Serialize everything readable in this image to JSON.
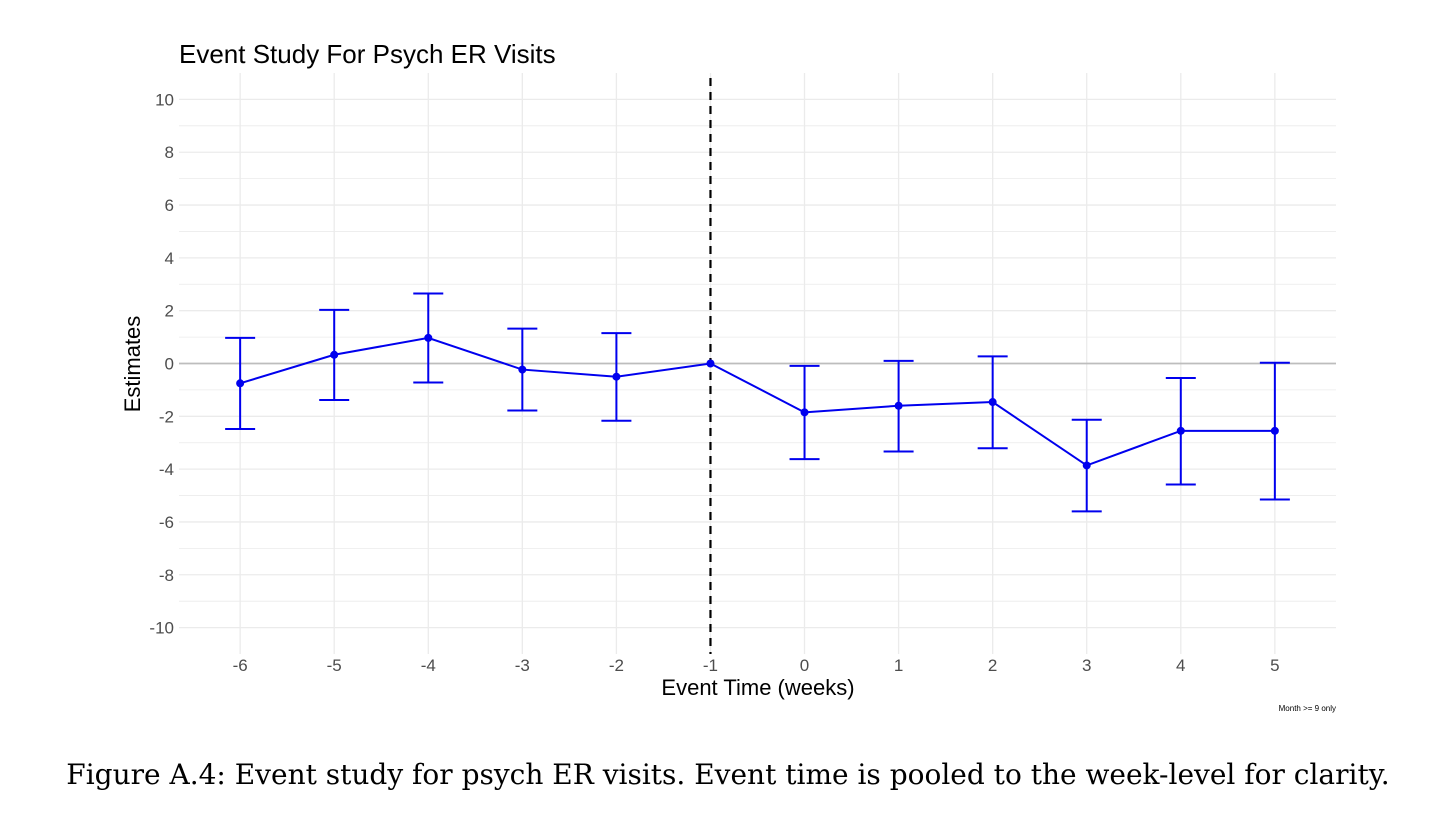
{
  "chart_data": {
    "type": "line",
    "title": "Event Study For Psych ER Visits",
    "xlabel": "Event Time (weeks)",
    "ylabel": "Estimates",
    "caption": "Month >= 9 only",
    "x": [
      -6,
      -5,
      -4,
      -3,
      -2,
      -1,
      0,
      1,
      2,
      3,
      4,
      5
    ],
    "estimates": [
      -0.75,
      0.33,
      0.97,
      -0.23,
      -0.5,
      0.0,
      -1.85,
      -1.6,
      -1.46,
      -3.86,
      -2.55,
      -2.55
    ],
    "ci_lower": [
      -2.48,
      -1.38,
      -0.72,
      -1.78,
      -2.17,
      0.0,
      -3.62,
      -3.33,
      -3.21,
      -5.6,
      -4.58,
      -5.15
    ],
    "ci_upper": [
      0.97,
      2.03,
      2.65,
      1.32,
      1.15,
      0.0,
      -0.09,
      0.1,
      0.27,
      -2.13,
      -0.55,
      0.03
    ],
    "xticks": [
      -6,
      -5,
      -4,
      -3,
      -2,
      -1,
      0,
      1,
      2,
      3,
      4,
      5
    ],
    "yticks": [
      -10,
      -8,
      -6,
      -4,
      -2,
      0,
      2,
      4,
      6,
      8,
      10
    ],
    "xlim": [
      -6.65,
      5.65
    ],
    "ylim": [
      -11,
      11
    ],
    "vline_x": -1,
    "hline_y": 0,
    "grid": true,
    "series_color": "#0000ee",
    "vline_color": "#000000",
    "hline_color": "#bdbdbd",
    "grid_color": "#ebebeb"
  },
  "figure_caption": "Figure A.4: Event study for psych ER visits. Event time is pooled to the week-level for clarity."
}
